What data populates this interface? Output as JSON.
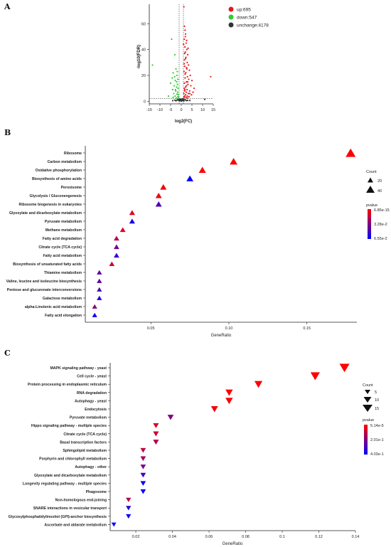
{
  "panels": {
    "a": "A",
    "b": "B",
    "c": "C"
  },
  "chart_data": [
    {
      "type": "scatter",
      "title": "",
      "xlabel": "log2(FC)",
      "ylabel": "-log10(FDR)",
      "xlim": [
        -15,
        15
      ],
      "ylim": [
        -2,
        75
      ],
      "xticks": [
        "-15",
        "-10",
        "-5",
        "0",
        "5",
        "10",
        "15"
      ],
      "yticks": [
        "0",
        "20",
        "40",
        "60"
      ],
      "legend_position": "right",
      "colors": {
        "up": "#e41a1c",
        "down": "#2ecc2e",
        "unchange": "#333333"
      },
      "series": [
        {
          "name": "up:695",
          "points": [
            [
              1.2,
              73
            ],
            [
              1.5,
              58
            ],
            [
              1.8,
              55
            ],
            [
              2.0,
              52
            ],
            [
              1.4,
              48
            ],
            [
              2.3,
              45
            ],
            [
              1.7,
              42
            ],
            [
              2.6,
              40
            ],
            [
              1.9,
              38
            ],
            [
              3.0,
              36
            ],
            [
              2.2,
              34
            ],
            [
              1.5,
              32
            ],
            [
              2.8,
              30
            ],
            [
              3.4,
              28
            ],
            [
              1.6,
              27
            ],
            [
              2.5,
              26
            ],
            [
              3.8,
              24
            ],
            [
              1.3,
              23
            ],
            [
              2.1,
              22
            ],
            [
              4.2,
              20
            ],
            [
              2.9,
              19
            ],
            [
              1.8,
              18
            ],
            [
              3.5,
              17
            ],
            [
              5.0,
              16
            ],
            [
              2.4,
              15
            ],
            [
              1.5,
              14
            ],
            [
              3.1,
              13
            ],
            [
              4.5,
              12
            ],
            [
              2.0,
              11
            ],
            [
              6.0,
              10
            ],
            [
              1.4,
              10
            ],
            [
              2.7,
              9
            ],
            [
              3.9,
              8
            ],
            [
              1.6,
              8
            ],
            [
              5.5,
              7
            ],
            [
              2.3,
              7
            ],
            [
              1.2,
              6
            ],
            [
              3.3,
              6
            ],
            [
              4.8,
              5
            ],
            [
              2.0,
              5
            ],
            [
              1.5,
              4
            ],
            [
              2.8,
              4
            ],
            [
              3.6,
              3.5
            ],
            [
              1.3,
              3
            ],
            [
              2.2,
              3
            ],
            [
              13.8,
              19
            ],
            [
              1.9,
              50
            ],
            [
              2.5,
              47
            ],
            [
              1.1,
              44
            ],
            [
              3.2,
              41
            ],
            [
              1.6,
              37
            ],
            [
              2.0,
              33
            ],
            [
              1.4,
              29
            ],
            [
              2.6,
              25
            ],
            [
              1.8,
              21
            ],
            [
              3.0,
              15
            ],
            [
              2.4,
              12
            ],
            [
              1.7,
              9
            ],
            [
              4.0,
              6
            ],
            [
              2.9,
              2.5
            ]
          ]
        },
        {
          "name": "down:547",
          "points": [
            [
              -13.5,
              28
            ],
            [
              -4.5,
              48
            ],
            [
              -3.0,
              36
            ],
            [
              -2.5,
              25
            ],
            [
              -3.8,
              22
            ],
            [
              -2.0,
              20
            ],
            [
              -4.2,
              18
            ],
            [
              -1.6,
              17
            ],
            [
              -2.8,
              16
            ],
            [
              -5.0,
              14
            ],
            [
              -1.8,
              13
            ],
            [
              -3.3,
              12
            ],
            [
              -2.2,
              11
            ],
            [
              -1.5,
              10
            ],
            [
              -4.0,
              9
            ],
            [
              -2.6,
              8
            ],
            [
              -1.7,
              7
            ],
            [
              -3.5,
              6
            ],
            [
              -2.0,
              5.5
            ],
            [
              -1.4,
              5
            ],
            [
              -2.9,
              4
            ],
            [
              -1.6,
              3.5
            ],
            [
              -3.8,
              3
            ],
            [
              -2.3,
              2.5
            ],
            [
              -1.3,
              3
            ],
            [
              -6.0,
              4
            ],
            [
              -2.1,
              15
            ],
            [
              -3.1,
              19
            ],
            [
              -1.9,
              23
            ],
            [
              -2.7,
              9
            ]
          ]
        },
        {
          "name": "unchange:4178",
          "points": [
            [
              -1.0,
              1
            ],
            [
              -0.5,
              0.5
            ],
            [
              0,
              0.2
            ],
            [
              0.5,
              0.6
            ],
            [
              1.0,
              1.2
            ],
            [
              -1.5,
              1.5
            ],
            [
              1.5,
              1.4
            ],
            [
              -0.8,
              0.3
            ],
            [
              0.8,
              0.8
            ],
            [
              -2.0,
              0.9
            ],
            [
              2.0,
              1.0
            ],
            [
              -0.3,
              1.1
            ],
            [
              0.3,
              0.4
            ],
            [
              -1.2,
              0.6
            ],
            [
              1.2,
              0.2
            ],
            [
              -2.5,
              0.4
            ],
            [
              2.5,
              0.5
            ],
            [
              -3.0,
              0.8
            ],
            [
              3.0,
              0.7
            ],
            [
              0.1,
              1.6
            ],
            [
              -0.6,
              1.8
            ],
            [
              0.6,
              1.9
            ],
            [
              11.0,
              1.5
            ],
            [
              -4.0,
              0.5
            ],
            [
              4.0,
              0.6
            ]
          ]
        }
      ]
    },
    {
      "type": "scatter",
      "title": "",
      "xlabel": "GeneRatio",
      "ylabel": "",
      "xlim": [
        0.008,
        0.182
      ],
      "xticks": [
        0.05,
        0.1,
        0.15
      ],
      "xtick_labels": [
        "0.05",
        "0.10",
        "0.15"
      ],
      "marker": "triangle-up",
      "size_legend": {
        "title": "Count",
        "labels": [
          "20",
          "40"
        ]
      },
      "color_legend": {
        "title": "pvalue",
        "labels": [
          "6.85e-15",
          "3.28e-2",
          "6.55e-2"
        ],
        "colors": [
          "#ff0000",
          "#0000ff"
        ]
      },
      "categories": [
        "Ribosome",
        "Carbon metabolism",
        "Oxidative phosphorylation",
        "Biosynthesis of amino acids",
        "Peroxisome",
        "Glycolysis / Gluconeogenesis",
        "Ribosome biogenesis in eukaryotes",
        "Glyoxylate and dicarboxylate metabolism",
        "Pyruvate metabolism",
        "Methane metabolism",
        "Fatty acid degradation",
        "Citrate cycle (TCA cycle)",
        "Fatty acid metabolism",
        "Biosynthesis of unsaturated fatty acids",
        "Thiamine metabolism",
        "Valine, leucine and isoleucine biosynthesis",
        "Pentose and glucuronate interconversions",
        "Galactose metabolism",
        "alpha-Linolenic acid metabolism",
        "Fatty acid elongation"
      ],
      "x": [
        0.178,
        0.103,
        0.083,
        0.075,
        0.058,
        0.055,
        0.055,
        0.038,
        0.038,
        0.032,
        0.028,
        0.028,
        0.028,
        0.025,
        0.017,
        0.017,
        0.017,
        0.017,
        0.014,
        0.014
      ],
      "count": [
        52,
        30,
        24,
        22,
        17,
        16,
        16,
        11,
        11,
        9,
        8,
        8,
        8,
        7,
        5,
        5,
        5,
        5,
        4,
        4
      ],
      "pvalue": [
        6.85e-15,
        1e-08,
        5e-06,
        0.065,
        0.003,
        0.004,
        0.045,
        0.008,
        0.058,
        0.009,
        0.018,
        0.035,
        0.052,
        0.012,
        0.042,
        0.04,
        0.045,
        0.055,
        0.03,
        0.06
      ]
    },
    {
      "type": "scatter",
      "title": "",
      "xlabel": "GeneRatio",
      "ylabel": "",
      "xlim": [
        0.006,
        0.14
      ],
      "xticks": [
        0.02,
        0.04,
        0.06,
        0.08,
        0.1,
        0.12,
        0.14
      ],
      "xtick_labels": [
        "0.02",
        "0.04",
        "0.06",
        "0.08",
        "0.1",
        "0.12",
        "0.14"
      ],
      "marker": "triangle-down",
      "size_legend": {
        "title": "Count",
        "labels": [
          "5",
          "10",
          "15"
        ]
      },
      "color_legend": {
        "title": "pvalue",
        "labels": [
          "5.14e-5",
          "2.01e-1",
          "4.03e-1"
        ],
        "colors": [
          "#ff0000",
          "#0000ff"
        ]
      },
      "categories": [
        "MAPK signaling pathway - yeast",
        "Cell cycle - yeast",
        "Protein processing in endoplasmic reticulum",
        "RNA degradation",
        "Autophagy - yeast",
        "Endocytosis",
        "Pyruvate metabolism",
        "Hippo signaling pathway - multiple species",
        "Citrate cycle (TCA cycle)",
        "Basal transcription factors",
        "Sphingolipid metabolism",
        "Porphyrin and chlorophyll metabolism",
        "Autophagy - other",
        "Glyoxylate and dicarboxylate metabolism",
        "Longevity regulating pathway - multiple species",
        "Phagosome",
        "Non-homologous end-joining",
        "SNARE interactions in vesicular transport",
        "Glycosylphosphatidylinositol (GPI)-anchor biosynthesis",
        "Ascorbate and aldarate metabolism"
      ],
      "x": [
        0.134,
        0.118,
        0.087,
        0.071,
        0.071,
        0.063,
        0.039,
        0.031,
        0.031,
        0.031,
        0.024,
        0.024,
        0.024,
        0.024,
        0.024,
        0.024,
        0.016,
        0.016,
        0.016,
        0.008
      ],
      "count": [
        17,
        15,
        11,
        9,
        9,
        8,
        5,
        4,
        4,
        4,
        3,
        3,
        3,
        3,
        3,
        3,
        2,
        2,
        2,
        1
      ],
      "pvalue": [
        5.14e-05,
        0.001,
        0.003,
        0.004,
        0.006,
        0.02,
        0.2,
        0.06,
        0.08,
        0.12,
        0.1,
        0.15,
        0.2,
        0.3,
        0.38,
        0.4,
        0.12,
        0.35,
        0.38,
        0.4
      ]
    }
  ]
}
